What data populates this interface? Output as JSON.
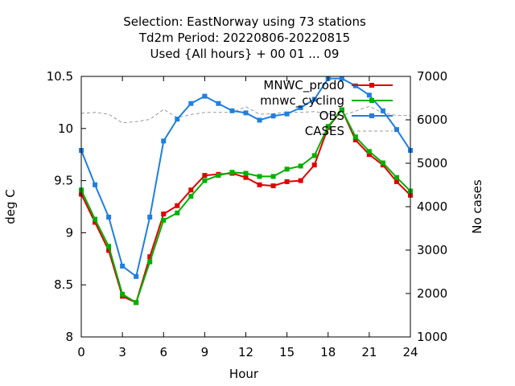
{
  "chart_data": {
    "type": "line",
    "title_lines": [
      "Selection: EastNorway using    73 stations",
      "Td2m   Period: 20220806-20220815",
      "Used {All hours} + 00 01 ... 09"
    ],
    "xlabel": "Hour",
    "ylabel": "deg C",
    "y2label": "No cases",
    "xlim": [
      0,
      24
    ],
    "ylim": [
      8,
      10.5
    ],
    "y2lim": [
      1000,
      7000
    ],
    "xticks": [
      "0",
      "3",
      "6",
      "9",
      "12",
      "15",
      "18",
      "21",
      "24"
    ],
    "yticks": [
      "8",
      "8.5",
      "9",
      "9.5",
      "10",
      "10.5"
    ],
    "y2ticks": [
      "1000",
      "2000",
      "3000",
      "4000",
      "5000",
      "6000",
      "7000"
    ],
    "grid": false,
    "legend_position": "top-right",
    "x": [
      0,
      1,
      2,
      3,
      4,
      5,
      6,
      7,
      8,
      9,
      10,
      11,
      12,
      13,
      14,
      15,
      16,
      17,
      18,
      19,
      20,
      21,
      22,
      23,
      24
    ],
    "series": [
      {
        "name": "MNWC_prod0",
        "color": "#e00000",
        "marker": "square",
        "axis": "y",
        "values": [
          9.37,
          9.1,
          8.83,
          8.39,
          8.33,
          8.77,
          9.18,
          9.26,
          9.41,
          9.55,
          9.56,
          9.57,
          9.53,
          9.46,
          9.45,
          9.49,
          9.5,
          9.65,
          10.01,
          10.18,
          9.89,
          9.75,
          9.65,
          9.49,
          9.36
        ]
      },
      {
        "name": "mnwc_cycling",
        "color": "#00b000",
        "marker": "square",
        "axis": "y",
        "values": [
          9.41,
          9.13,
          8.87,
          8.41,
          8.33,
          8.72,
          9.12,
          9.19,
          9.35,
          9.5,
          9.55,
          9.58,
          9.57,
          9.54,
          9.54,
          9.61,
          9.64,
          9.74,
          10.02,
          10.18,
          9.92,
          9.78,
          9.67,
          9.53,
          9.4
        ]
      },
      {
        "name": "OBS",
        "color": "#1f7fe0",
        "marker": "square",
        "axis": "y",
        "values": [
          9.79,
          9.46,
          9.15,
          8.68,
          8.58,
          9.15,
          9.88,
          10.09,
          10.24,
          10.31,
          10.24,
          10.17,
          10.15,
          10.08,
          10.12,
          10.14,
          10.2,
          10.28,
          10.48,
          10.48,
          10.41,
          10.32,
          10.17,
          9.99,
          9.79
        ]
      },
      {
        "name": "CASES",
        "color": "#999999",
        "dashed": true,
        "axis": "y2",
        "values": [
          6150,
          6170,
          6130,
          5930,
          5960,
          6010,
          6240,
          6050,
          6120,
          6170,
          6170,
          6170,
          6300,
          6130,
          6140,
          6180,
          6170,
          6190,
          6140,
          6100,
          6200,
          6310,
          6160,
          6100,
          6100
        ]
      }
    ]
  }
}
